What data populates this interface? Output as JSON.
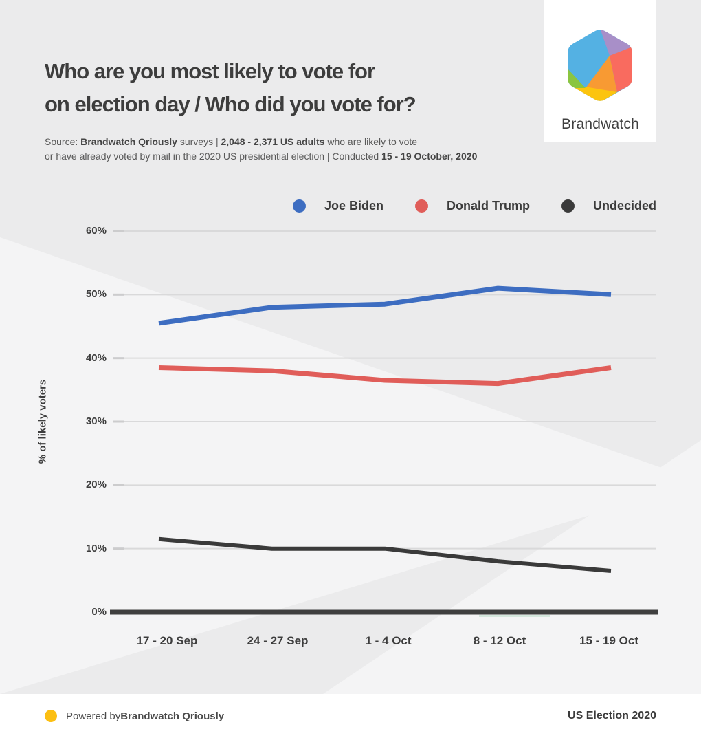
{
  "header": {
    "title_line1": "Who are you most likely to vote for",
    "title_line2": "on election day / Who did you vote for?",
    "source_line1": [
      {
        "text": "Source: ",
        "bold": false
      },
      {
        "text": "Brandwatch Qriously",
        "bold": true
      },
      {
        "text": " surveys | ",
        "bold": false
      },
      {
        "text": "2,048 - 2,371 US adults",
        "bold": true
      },
      {
        "text": " who are likely to vote",
        "bold": false
      }
    ],
    "source_line2": [
      {
        "text": "or have already voted by mail in the 2020 US presidential election | Conducted ",
        "bold": false
      },
      {
        "text": "15 - 19 October, 2020",
        "bold": true
      }
    ]
  },
  "logo": {
    "brand_name": "Brandwatch",
    "facet_colors": {
      "blue": "#54b1e3",
      "purple": "#a88fc8",
      "red": "#f96b5f",
      "orange": "#f89a33",
      "yellow": "#fcc40e",
      "green": "#8bc540"
    }
  },
  "chart_data": {
    "type": "line",
    "title": "Who are you most likely to vote for on election day / Who did you vote for?",
    "ylabel": "% of likely voters",
    "xlabel": "",
    "ylim": [
      0,
      60
    ],
    "ytick_labels": [
      "0%",
      "10%",
      "20%",
      "30%",
      "40%",
      "50%",
      "60%"
    ],
    "grid": true,
    "legend_position": "top-right",
    "categories": [
      "17 - 20 Sep",
      "24 - 27 Sep",
      "1 - 4 Oct",
      "8 - 12 Oct",
      "15 - 19 Oct"
    ],
    "series": [
      {
        "name": "Joe Biden",
        "color": "#3d6dc1",
        "values": [
          45.5,
          48,
          48.5,
          51,
          50
        ]
      },
      {
        "name": "Donald Trump",
        "color": "#e05d59",
        "values": [
          38.5,
          38,
          36.5,
          36,
          38.5
        ]
      },
      {
        "name": "Undecided",
        "color": "#3a3a3a",
        "values": [
          11.5,
          10,
          10,
          8,
          6.5
        ]
      }
    ],
    "axis_color": "#3f3f3f",
    "gridline_color": "#d9d9da",
    "baseline_artifact_color": "#b5d8c2"
  },
  "footer": {
    "powered_prefix": "Powered by ",
    "powered_brand": "Brandwatch Qriously",
    "dot_color": "#fcbf12",
    "right_text": "US Election 2020"
  }
}
